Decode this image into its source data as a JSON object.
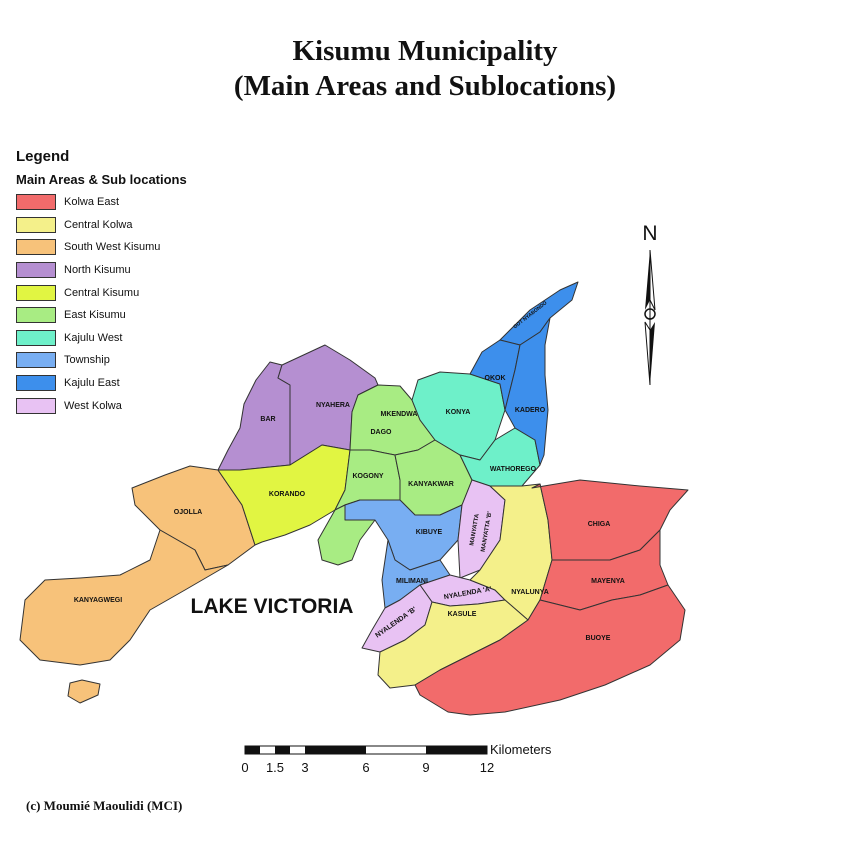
{
  "title": {
    "line1": "Kisumu Municipality",
    "line2": "(Main Areas and Sublocations)"
  },
  "legend": {
    "title": "Legend",
    "subtitle": "Main Areas & Sub locations",
    "items": [
      {
        "label": "Kolwa East",
        "color": "#f26b6b"
      },
      {
        "label": "Central Kolwa",
        "color": "#f4f08a"
      },
      {
        "label": "South West Kisumu",
        "color": "#f7c27a"
      },
      {
        "label": "North Kisumu",
        "color": "#b58fd1"
      },
      {
        "label": "Central Kisumu",
        "color": "#e1f542"
      },
      {
        "label": "East Kisumu",
        "color": "#a8ec83"
      },
      {
        "label": "Kajulu West",
        "color": "#6ef0c9"
      },
      {
        "label": "Township",
        "color": "#78aef2"
      },
      {
        "label": "Kajulu East",
        "color": "#3d8fec"
      },
      {
        "label": "West Kolwa",
        "color": "#e8c2f3"
      }
    ]
  },
  "north_label": "N",
  "lake_label": "LAKE VICTORIA",
  "sublocations": {
    "bar": "BAR",
    "nyahera": "NYAHERA",
    "korando": "KORANDO",
    "ojolla": "OJOLLA",
    "kanyagwegi": "KANYAGWEGI",
    "mkendwa": "MKENDWA",
    "dago": "DAGO",
    "kogony": "KOGONY",
    "kanyakwar": "KANYAKWAR",
    "konya": "KONYA",
    "okok": "OKOK",
    "kadero": "KADERO",
    "got_nyabondo": "GOT NYABONDO",
    "wathorego": "WATHOREGO",
    "kibuye": "KIBUYE",
    "manyatta_a": "MANYATTA",
    "manyatta_b": "MANYATTA 'B'",
    "milimani": "MILIMANI",
    "nyalenda_a": "NYALENDA 'A'",
    "nyalenda_b": "NYALENDA 'B'",
    "kasule": "KASULE",
    "nyalunya": "NYALUNYA",
    "chiga": "CHIGA",
    "mayenya": "MAYENYA",
    "buoye": "BUOYE"
  },
  "scale_bar": {
    "unit": "Kilometers",
    "ticks": [
      "0",
      "1.5",
      "3",
      "6",
      "9",
      "12"
    ]
  },
  "credit": "(c) Moumié Maoulidi (MCI)"
}
